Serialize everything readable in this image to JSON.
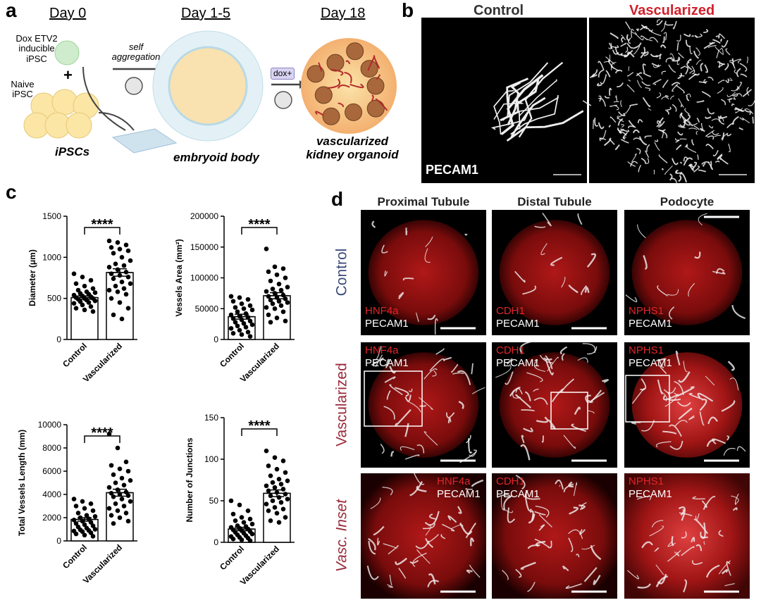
{
  "panel_labels": [
    "a",
    "b",
    "c",
    "d"
  ],
  "schematic": {
    "days": [
      "Day 0",
      "Day 1-5",
      "Day 18"
    ],
    "dox_cell": "Dox ETV2\ninducible\niPSC",
    "plus": "+",
    "naive_cell": "Naive\niPSC",
    "ipscs": "iPSCs",
    "aggregation": "self\naggregation",
    "embryoid": "embryoid body",
    "dox": "dox+",
    "organoid": "vascularized\nkidney organoid"
  },
  "staining": {
    "columns": [
      "Control",
      "Vascularized"
    ],
    "marker": "PECAM1"
  },
  "microscopy": {
    "columns": [
      "Proximal Tubule",
      "Distal Tubule",
      "Podocyte"
    ],
    "rows": [
      "Control",
      "Vascularized",
      "Vasc. Inset"
    ],
    "stains": [
      [
        "HNF4a",
        "PECAM1"
      ],
      [
        "CDH1",
        "PECAM1"
      ],
      [
        "NPHS1",
        "PECAM1"
      ]
    ]
  },
  "chart_data": [
    {
      "type": "bar",
      "ylabel": "Diameter (μm)",
      "categories": [
        "Control",
        "Vascularized"
      ],
      "values": [
        510,
        815
      ],
      "errors": [
        20,
        45
      ],
      "color": "#ffffff",
      "significance": "****",
      "points": [
        [
          800,
          760,
          720,
          680,
          650,
          620,
          600,
          580,
          570,
          560,
          550,
          540,
          530,
          520,
          510,
          500,
          500,
          490,
          480,
          470,
          460,
          450,
          440,
          420,
          400,
          380,
          360,
          340
        ],
        [
          1200,
          1180,
          1150,
          1120,
          1100,
          1080,
          1050,
          1000,
          960,
          920,
          900,
          880,
          850,
          820,
          800,
          780,
          760,
          740,
          700,
          680,
          650,
          620,
          600,
          580,
          550,
          500,
          450,
          380,
          300,
          250
        ]
      ],
      "ylim": [
        0,
        1500
      ],
      "yticks": [
        0,
        500,
        1000,
        1500
      ]
    },
    {
      "type": "bar",
      "ylabel": "Vessels Area (mm²)",
      "categories": [
        "Control",
        "Vascularized"
      ],
      "values": [
        37000,
        71000
      ],
      "errors": [
        4000,
        5000
      ],
      "color": "#ffffff",
      "significance": "****",
      "points": [
        [
          70000,
          68000,
          65000,
          62000,
          58000,
          55000,
          52000,
          50000,
          48000,
          45000,
          42000,
          40000,
          38000,
          36000,
          34000,
          32000,
          30000,
          28000,
          26000,
          24000,
          22000,
          20000,
          18000,
          15000,
          12000,
          10000,
          8000,
          5000
        ],
        [
          147000,
          118000,
          115000,
          110000,
          105000,
          100000,
          95000,
          90000,
          85000,
          82000,
          80000,
          78000,
          75000,
          72000,
          70000,
          68000,
          66000,
          64000,
          62000,
          60000,
          58000,
          55000,
          52000,
          50000,
          45000,
          40000,
          35000,
          30000,
          28000
        ]
      ],
      "ylim": [
        0,
        200000
      ],
      "yticks": [
        0,
        50000,
        100000,
        150000,
        200000
      ]
    },
    {
      "type": "bar",
      "ylabel": "Total Vessels Length (mm)",
      "categories": [
        "Control",
        "Vascularized"
      ],
      "values": [
        1850,
        4150
      ],
      "errors": [
        150,
        300
      ],
      "color": "#ffffff",
      "significance": "****",
      "points": [
        [
          3600,
          3400,
          3200,
          3000,
          2800,
          2600,
          2400,
          2200,
          2100,
          2000,
          1900,
          1800,
          1700,
          1600,
          1500,
          1400,
          1300,
          1200,
          1100,
          1000,
          950,
          900,
          850,
          800,
          700,
          600,
          500,
          400
        ],
        [
          9200,
          8000,
          6800,
          6500,
          6200,
          6000,
          5700,
          5400,
          5200,
          5000,
          4800,
          4600,
          4400,
          4200,
          4100,
          4000,
          3900,
          3800,
          3600,
          3400,
          3200,
          3000,
          2800,
          2600,
          2400,
          2200,
          2000,
          1700,
          1500
        ]
      ],
      "ylim": [
        0,
        10000
      ],
      "yticks": [
        0,
        2000,
        4000,
        6000,
        8000,
        10000
      ]
    },
    {
      "type": "bar",
      "ylabel": "Number of Junctions",
      "categories": [
        "Control",
        "Vascularized"
      ],
      "values": [
        16,
        59
      ],
      "errors": [
        2,
        4
      ],
      "color": "#ffffff",
      "significance": "****",
      "points": [
        [
          50,
          45,
          38,
          34,
          30,
          28,
          26,
          24,
          22,
          20,
          19,
          18,
          17,
          16,
          15,
          14,
          13,
          12,
          11,
          10,
          9,
          8,
          7,
          6,
          5,
          4,
          3,
          2
        ],
        [
          110,
          102,
          98,
          92,
          88,
          84,
          80,
          76,
          74,
          72,
          70,
          68,
          66,
          64,
          62,
          60,
          58,
          56,
          54,
          52,
          50,
          48,
          46,
          42,
          40,
          38,
          35,
          30,
          26,
          24
        ]
      ],
      "ylim": [
        0,
        150
      ],
      "yticks": [
        0,
        50,
        100,
        150
      ]
    }
  ]
}
